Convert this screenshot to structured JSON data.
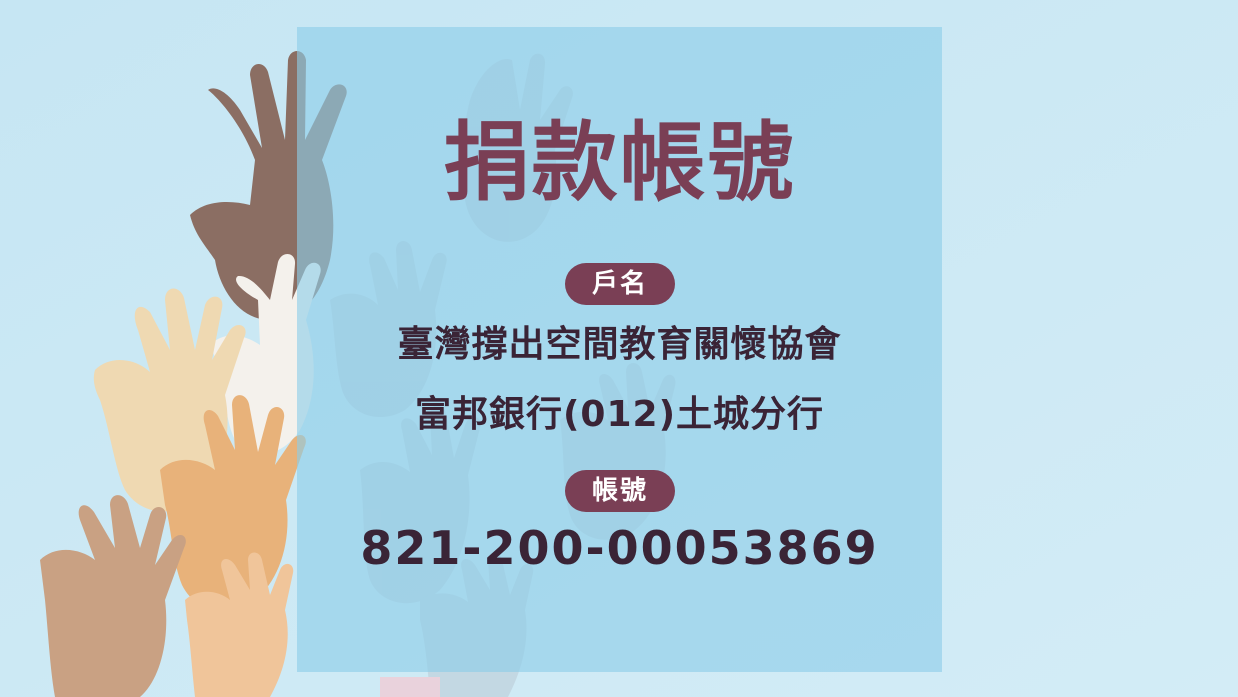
{
  "title": "捐款帳號",
  "account_holder_label": "戶名",
  "account_holder_name": "臺灣撐出空間教育關懷協會",
  "bank_branch": "富邦銀行(012)土城分行",
  "account_number_label": "帳號",
  "account_number": "821-200-00053869",
  "colors": {
    "background": "#cce8f3",
    "panel": "#8ccde8",
    "accent": "#7a3f55",
    "text": "#3a2436"
  }
}
